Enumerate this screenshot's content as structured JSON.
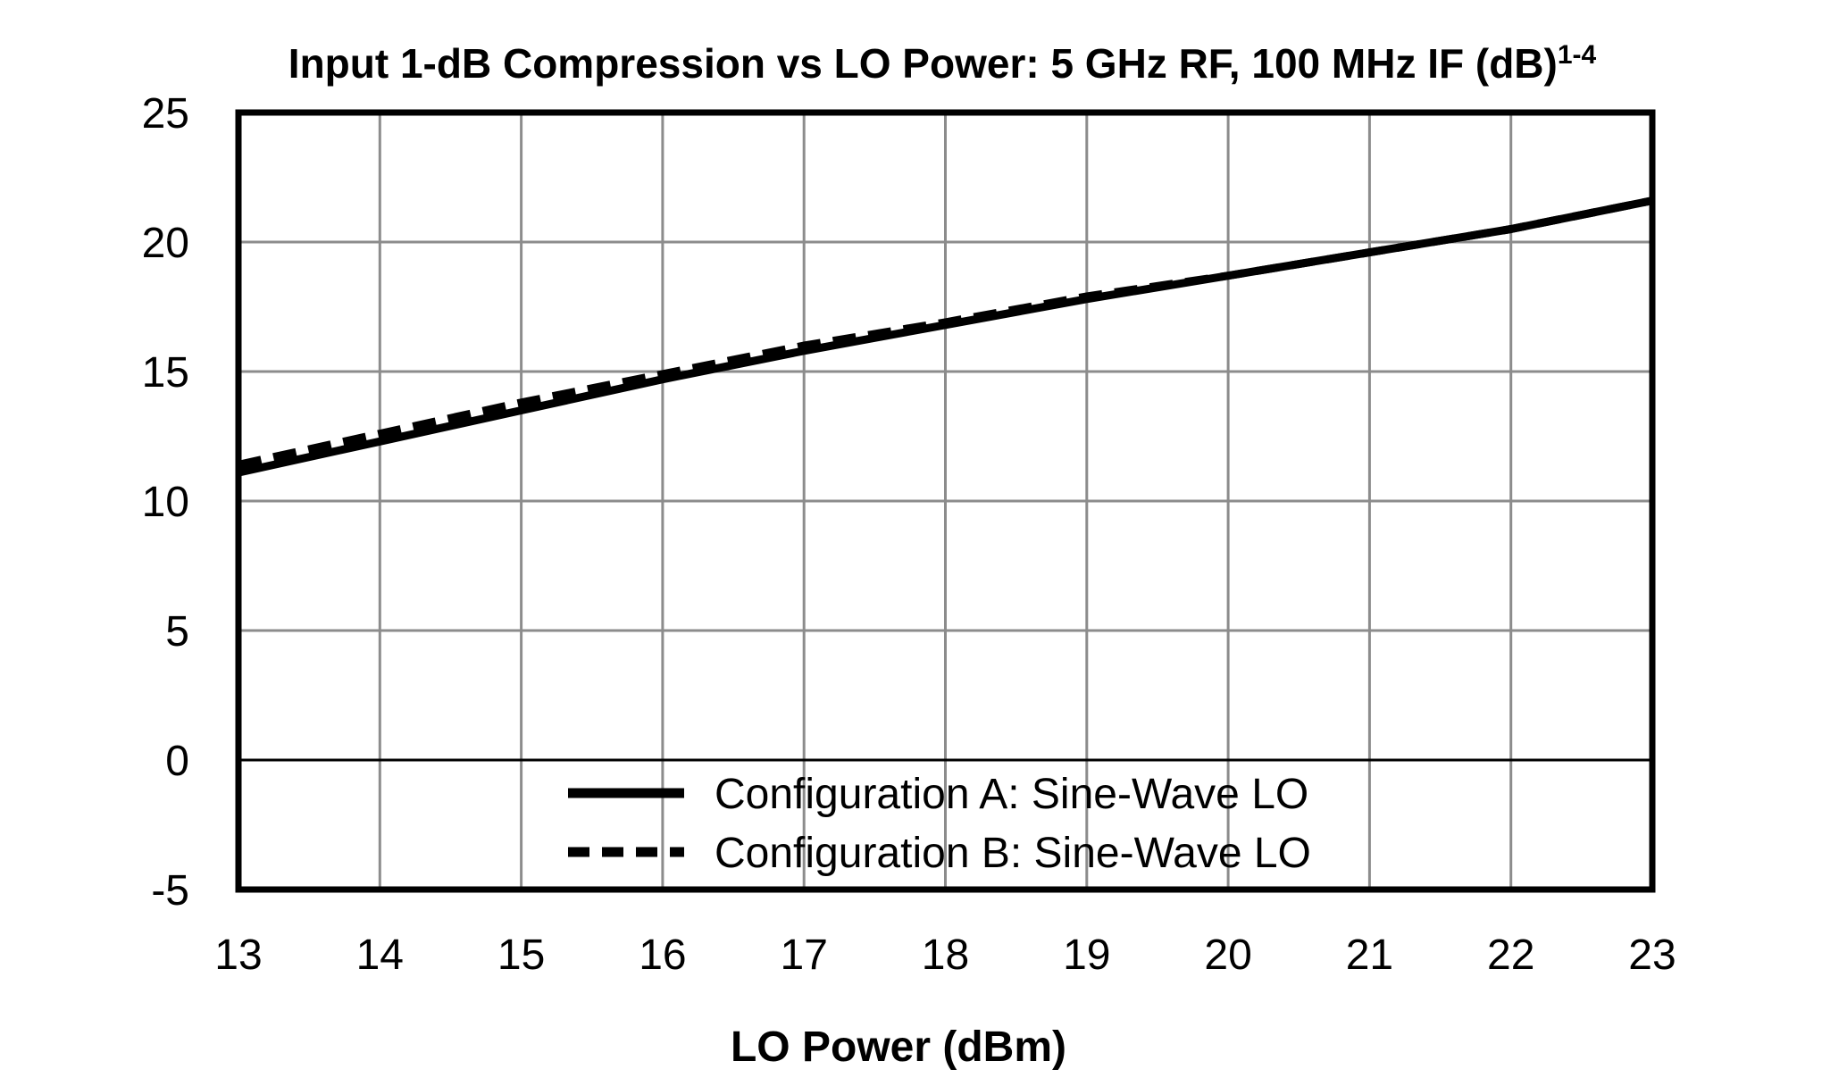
{
  "chart_data": {
    "type": "line",
    "title": "Input 1-dB Compression vs LO Power: 5 GHz RF, 100 MHz IF (dB)",
    "title_superscript": "1-4",
    "xlabel": "LO Power (dBm)",
    "ylabel": "",
    "xlim": [
      13,
      23
    ],
    "ylim": [
      -5,
      25
    ],
    "xticks": [
      13,
      14,
      15,
      16,
      17,
      18,
      19,
      20,
      21,
      22,
      23
    ],
    "yticks": [
      -5,
      0,
      5,
      10,
      15,
      20,
      25
    ],
    "grid": true,
    "legend_position": "bottom-center inside",
    "series": [
      {
        "name": "Configuration A: Sine-Wave LO",
        "style": "solid",
        "color": "#000000",
        "x": [
          13,
          14,
          15,
          16,
          17,
          18,
          19,
          20,
          21,
          22,
          23
        ],
        "y": [
          11.1,
          12.3,
          13.5,
          14.7,
          15.8,
          16.8,
          17.8,
          18.7,
          19.6,
          20.5,
          21.6
        ]
      },
      {
        "name": "Configuration B: Sine-Wave LO",
        "style": "dashed",
        "color": "#000000",
        "x": [
          13,
          14,
          15,
          16,
          17,
          18,
          19,
          20,
          21,
          22,
          23
        ],
        "y": [
          11.4,
          12.6,
          13.8,
          14.9,
          16.0,
          16.9,
          17.9,
          18.7,
          19.6,
          20.5,
          21.6
        ]
      }
    ]
  }
}
